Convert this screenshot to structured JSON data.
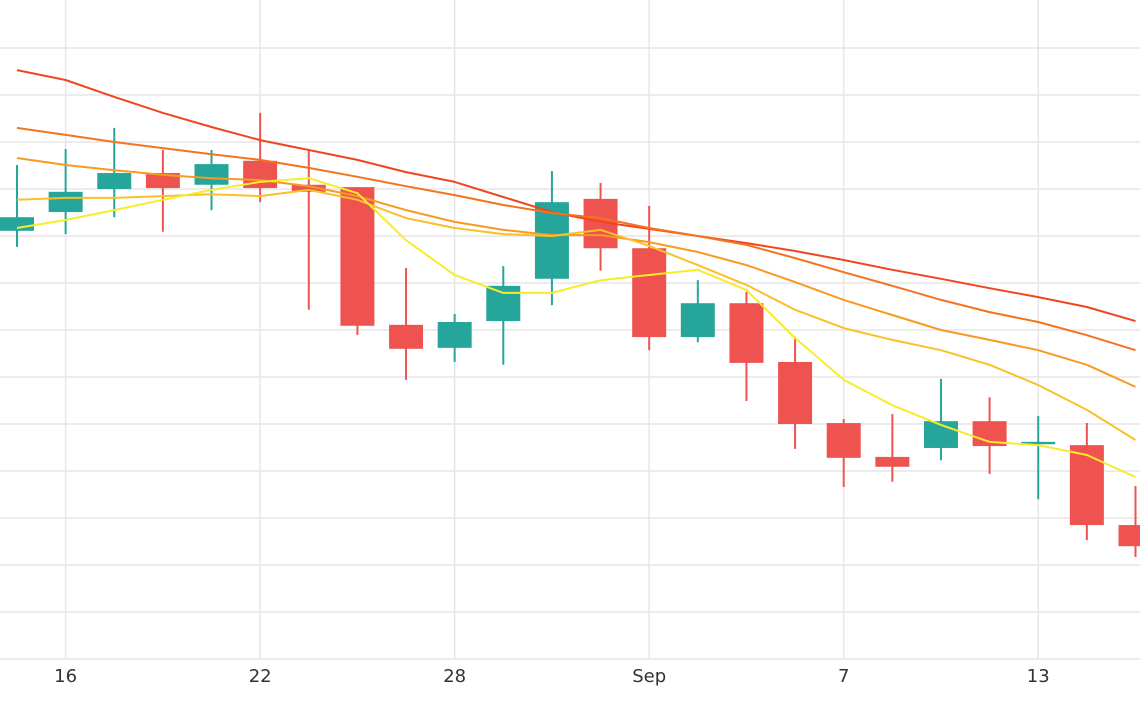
{
  "chart_data": {
    "type": "candlestick",
    "categories": [
      null,
      "16",
      null,
      null,
      null,
      "22",
      null,
      null,
      null,
      "28",
      null,
      null,
      null,
      "Sep",
      null,
      null,
      null,
      "7",
      null,
      null,
      null,
      "13",
      null,
      null
    ],
    "open": [
      9.11,
      9.51,
      10.0,
      10.34,
      10.09,
      10.6,
      10.09,
      10.04,
      7.11,
      6.62,
      7.19,
      8.09,
      9.79,
      8.74,
      6.85,
      7.57,
      6.32,
      5.02,
      4.3,
      4.49,
      5.06,
      4.57,
      4.55,
      2.85
    ],
    "high": [
      10.51,
      10.85,
      11.3,
      10.83,
      10.83,
      11.62,
      10.81,
      10.04,
      8.32,
      7.34,
      8.36,
      10.38,
      10.13,
      9.64,
      8.06,
      7.81,
      6.85,
      5.11,
      5.21,
      5.96,
      5.57,
      5.17,
      5.02,
      3.68
    ],
    "low": [
      8.77,
      9.04,
      9.4,
      9.09,
      9.55,
      9.72,
      7.43,
      6.89,
      5.94,
      6.32,
      6.26,
      7.53,
      8.26,
      6.57,
      6.74,
      5.49,
      4.47,
      3.66,
      3.77,
      4.23,
      3.94,
      3.4,
      2.53,
      2.17
    ],
    "close": [
      9.4,
      9.94,
      10.34,
      10.02,
      10.53,
      10.02,
      9.94,
      7.09,
      6.6,
      7.17,
      7.94,
      9.72,
      8.74,
      6.85,
      7.57,
      6.3,
      5.0,
      4.28,
      4.09,
      5.06,
      4.53,
      4.62,
      2.85,
      2.4
    ],
    "up_color": "#26a69a",
    "down_color": "#ef5350",
    "lines": [
      {
        "color": "#f0461e",
        "values": [
          12.53,
          12.32,
          11.96,
          11.62,
          11.32,
          11.04,
          10.83,
          10.62,
          10.36,
          10.15,
          9.83,
          9.51,
          9.3,
          9.15,
          9.0,
          8.85,
          8.68,
          8.49,
          8.28,
          8.09,
          7.89,
          7.7,
          7.49,
          7.19
        ]
      },
      {
        "color": "#f5731e",
        "values": [
          11.3,
          11.15,
          11.0,
          10.87,
          10.74,
          10.62,
          10.45,
          10.26,
          10.06,
          9.87,
          9.66,
          9.49,
          9.38,
          9.17,
          9.0,
          8.81,
          8.53,
          8.23,
          7.94,
          7.64,
          7.38,
          7.17,
          6.89,
          6.57
        ]
      },
      {
        "color": "#f79a22",
        "values": [
          10.66,
          10.51,
          10.4,
          10.3,
          10.23,
          10.19,
          10.06,
          9.85,
          9.55,
          9.3,
          9.13,
          9.02,
          9.02,
          8.87,
          8.66,
          8.38,
          8.02,
          7.64,
          7.32,
          7.0,
          6.79,
          6.57,
          6.26,
          5.79
        ]
      },
      {
        "color": "#fbbf2a",
        "values": [
          9.77,
          9.81,
          9.81,
          9.85,
          9.89,
          9.85,
          9.98,
          9.77,
          9.38,
          9.17,
          9.04,
          9.0,
          9.13,
          8.79,
          8.38,
          7.96,
          7.43,
          7.04,
          6.79,
          6.57,
          6.26,
          5.83,
          5.3,
          4.66
        ]
      },
      {
        "color": "#f7ec2c",
        "values": [
          9.17,
          9.34,
          9.55,
          9.77,
          9.98,
          10.15,
          10.23,
          9.91,
          8.91,
          8.17,
          7.79,
          7.79,
          8.06,
          8.17,
          8.28,
          7.85,
          6.83,
          5.94,
          5.4,
          4.98,
          4.62,
          4.55,
          4.34,
          3.87
        ]
      }
    ],
    "ylim": [
      0,
      14
    ],
    "yticks": [
      0,
      1,
      2,
      3,
      4,
      5,
      6,
      7,
      8,
      9,
      10,
      11,
      12,
      13
    ],
    "grid": true
  }
}
